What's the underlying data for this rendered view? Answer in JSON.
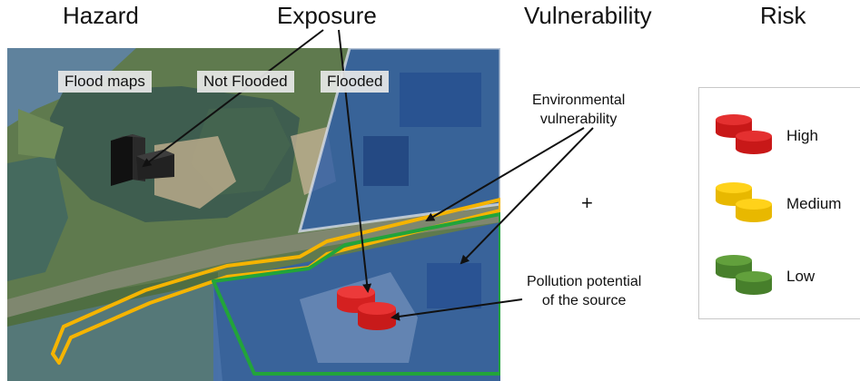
{
  "headers": {
    "hazard": "Hazard",
    "exposure": "Exposure",
    "vulnerability": "Vulnerability",
    "risk": "Risk"
  },
  "map_labels": {
    "flood_maps": "Flood maps",
    "not_flooded": "Not Flooded",
    "flooded": "Flooded"
  },
  "annotations": {
    "env_vulnerability_line1": "Environmental",
    "env_vulnerability_line2": "vulnerability",
    "pollution_line1": "Pollution potential",
    "pollution_line2": "of the source",
    "plus": "+"
  },
  "legend": {
    "items": [
      {
        "label": "High",
        "color": "#d42020"
      },
      {
        "label": "Medium",
        "color": "#f5c400"
      },
      {
        "label": "Low",
        "color": "#4e8a30"
      }
    ]
  },
  "colors": {
    "flooded_overlay": "#3b6fb8",
    "ecological_corridor": "#f5b400",
    "river_outline": "#22a43a",
    "building": "#111111"
  }
}
